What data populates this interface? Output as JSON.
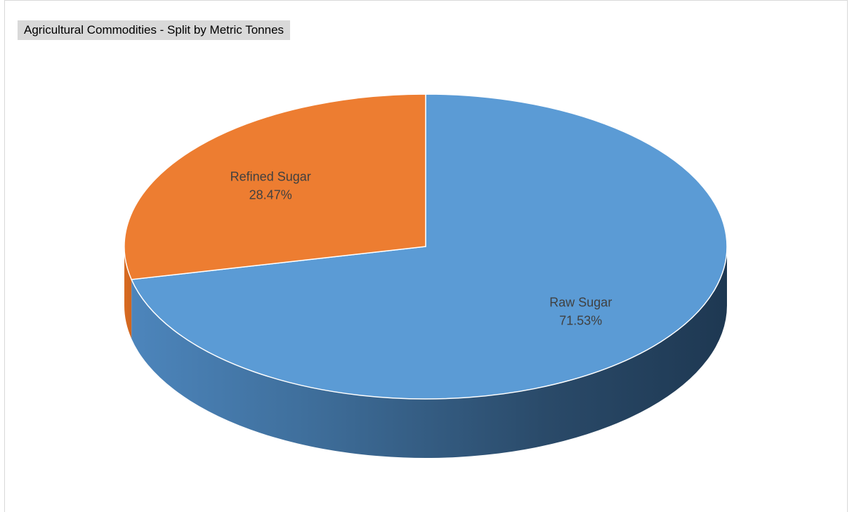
{
  "chart_data": {
    "type": "pie",
    "title": "Agricultural Commodities - Split by Metric Tonnes",
    "slices": [
      {
        "name": "Raw Sugar",
        "value": 71.53,
        "label": "71.53%",
        "color": "#5b9bd5"
      },
      {
        "name": "Refined Sugar",
        "value": 28.47,
        "label": "28.47%",
        "color": "#ed7d31"
      }
    ],
    "style": "3d",
    "legend": "none"
  }
}
